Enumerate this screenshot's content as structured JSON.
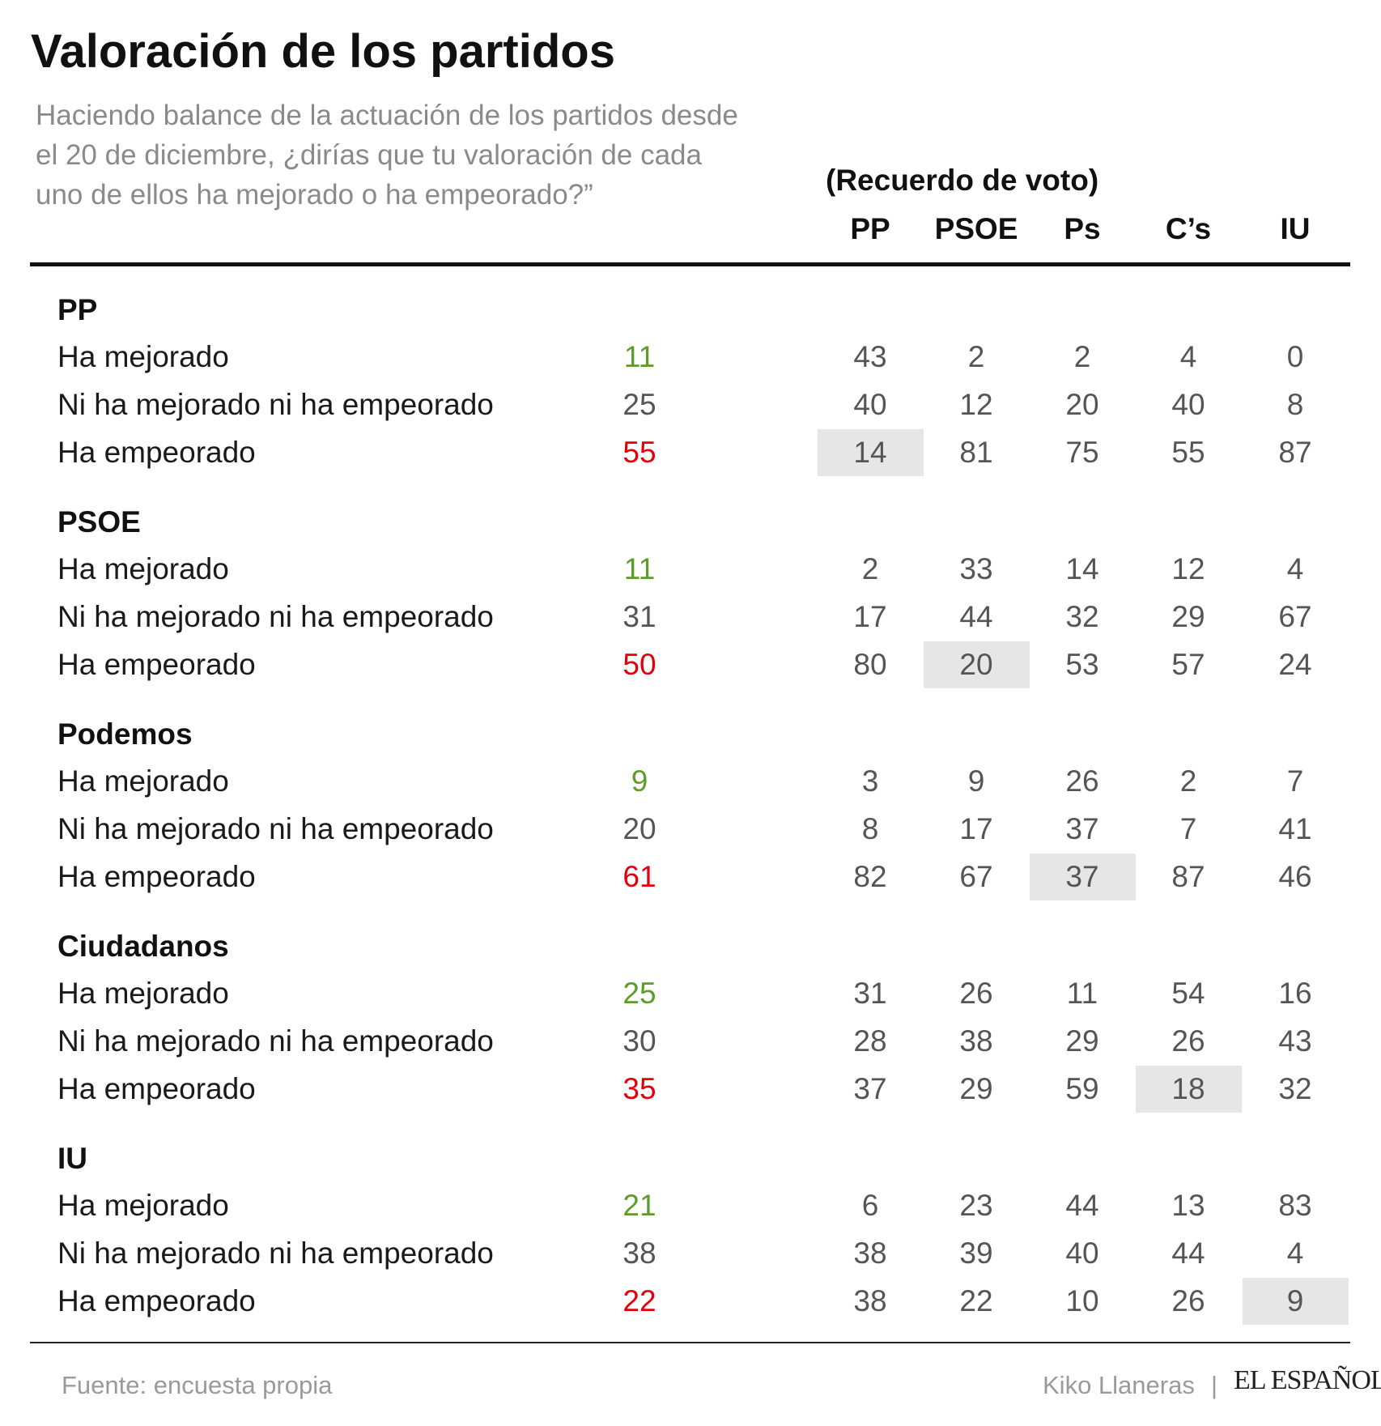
{
  "title": "Valoración de los partidos",
  "subtitle": "Haciendo balance de la actuación de los partidos desde el 20 de diciembre, ¿dirías que tu valoración de cada uno de ellos ha mejorado o ha empeorado?”",
  "recuerdo_label": "(Recuerdo de voto)",
  "source": "Fuente: encuesta propia",
  "credit": "Kiko Llaneras",
  "separator": "|",
  "logo_text": "EL ESPAÑOL",
  "colors": {
    "positive": "#5d9c2a",
    "neutral": "#555555",
    "negative": "#e3000b",
    "highlight": "#e6e6e6"
  },
  "chart_data": {
    "type": "table",
    "title": "Valoración de los partidos",
    "columns": [
      "PP",
      "PSOE",
      "Ps",
      "C’s",
      "IU"
    ],
    "row_labels": [
      "Ha mejorado",
      "Ni ha mejorado ni ha empeorado",
      "Ha empeorado"
    ],
    "groups": [
      {
        "name": "PP",
        "rows": [
          {
            "label": "Ha mejorado",
            "total": 11,
            "values": [
              43,
              2,
              2,
              4,
              0
            ]
          },
          {
            "label": "Ni ha mejorado ni ha empeorado",
            "total": 25,
            "values": [
              40,
              12,
              20,
              40,
              8
            ]
          },
          {
            "label": "Ha empeorado",
            "total": 55,
            "values": [
              14,
              81,
              75,
              55,
              87
            ]
          }
        ],
        "highlight_column": 0
      },
      {
        "name": "PSOE",
        "rows": [
          {
            "label": "Ha mejorado",
            "total": 11,
            "values": [
              2,
              33,
              14,
              12,
              4
            ]
          },
          {
            "label": "Ni ha mejorado ni ha empeorado",
            "total": 31,
            "values": [
              17,
              44,
              32,
              29,
              67
            ]
          },
          {
            "label": "Ha empeorado",
            "total": 50,
            "values": [
              80,
              20,
              53,
              57,
              24
            ]
          }
        ],
        "highlight_column": 1
      },
      {
        "name": "Podemos",
        "rows": [
          {
            "label": "Ha mejorado",
            "total": 9,
            "values": [
              3,
              9,
              26,
              2,
              7
            ]
          },
          {
            "label": "Ni ha mejorado ni ha empeorado",
            "total": 20,
            "values": [
              8,
              17,
              37,
              7,
              41
            ]
          },
          {
            "label": "Ha empeorado",
            "total": 61,
            "values": [
              82,
              67,
              37,
              87,
              46
            ]
          }
        ],
        "highlight_column": 2
      },
      {
        "name": "Ciudadanos",
        "rows": [
          {
            "label": "Ha mejorado",
            "total": 25,
            "values": [
              31,
              26,
              11,
              54,
              16
            ]
          },
          {
            "label": "Ni ha mejorado ni ha empeorado",
            "total": 30,
            "values": [
              28,
              38,
              29,
              26,
              43
            ]
          },
          {
            "label": "Ha empeorado",
            "total": 35,
            "values": [
              37,
              29,
              59,
              18,
              32
            ]
          }
        ],
        "highlight_column": 3
      },
      {
        "name": "IU",
        "rows": [
          {
            "label": "Ha mejorado",
            "total": 21,
            "values": [
              6,
              23,
              44,
              13,
              83
            ]
          },
          {
            "label": "Ni ha mejorado ni ha empeorado",
            "total": 38,
            "values": [
              38,
              39,
              40,
              44,
              4
            ]
          },
          {
            "label": "Ha empeorado",
            "total": 22,
            "values": [
              38,
              22,
              10,
              26,
              9
            ]
          }
        ],
        "highlight_column": 4
      }
    ]
  }
}
